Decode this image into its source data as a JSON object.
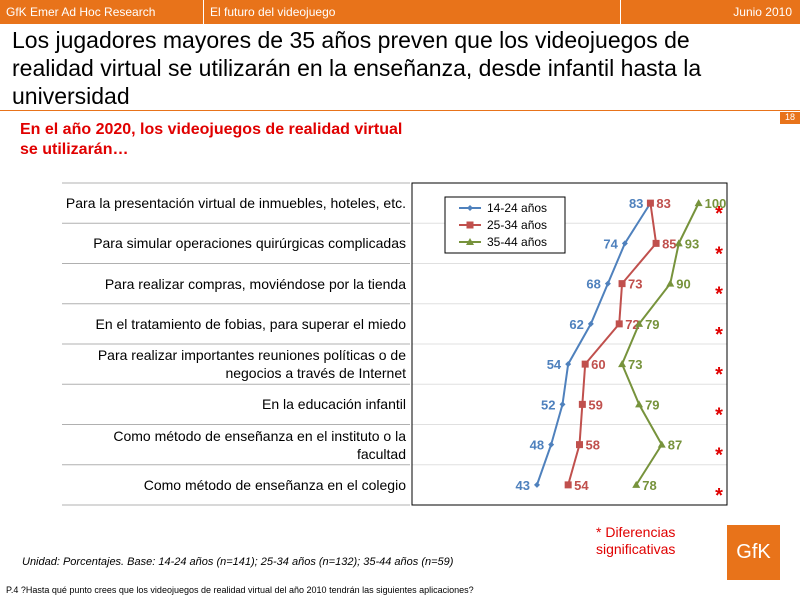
{
  "header": {
    "left": "GfK Emer Ad Hoc Research",
    "middle": "El futuro del videojuego",
    "date": "Junio 2010"
  },
  "page_number": "18",
  "title": "Los jugadores mayores de 35 años preven que los videojuegos de realidad virtual se utilizarán en la enseñanza, desde infantil hasta la universidad",
  "chart_data": {
    "type": "line",
    "title": "En el año 2020, los videojuegos de realidad virtual se utilizarán…",
    "categories": [
      "Para la presentación virtual de inmuebles, hoteles, etc.",
      "Para simular operaciones quirúrgicas complicadas",
      "Para realizar compras, moviéndose por la tienda",
      "En el tratamiento de fobias, para superar el miedo",
      "Para realizar importantes reuniones políticas o de negocios a través de Internet",
      "En la educación infantil",
      "Como método de enseñanza en el instituto o la facultad",
      "Como método de enseñanza en el colegio"
    ],
    "series": [
      {
        "name": "14-24 años",
        "color": "#4f81bd",
        "marker": "diamond",
        "values": [
          83,
          74,
          68,
          62,
          54,
          52,
          48,
          43
        ]
      },
      {
        "name": "25-34 años",
        "color": "#c0504d",
        "marker": "square",
        "values": [
          83,
          85,
          73,
          72,
          60,
          59,
          58,
          54
        ]
      },
      {
        "name": "35-44 años",
        "color": "#77933c",
        "marker": "triangle",
        "values": [
          100,
          93,
          90,
          79,
          73,
          79,
          87,
          78
        ]
      }
    ],
    "xlim": [
      0,
      110
    ],
    "significance_marks": [
      "*",
      "*",
      "*",
      "*",
      "*",
      "*",
      "*",
      "*"
    ],
    "significance_note": "* Diferencias significativas",
    "legend": "upper-left"
  },
  "base_note": "Unidad: Porcentajes. Base: 14-24 años (n=141); 25-34 años (n=132); 35-44 años (n=59)",
  "question": "P.4 ?Hasta qué punto crees que los videojuegos de realidad virtual del año 2010 tendrán las siguientes aplicaciones?",
  "logo": "GfK"
}
